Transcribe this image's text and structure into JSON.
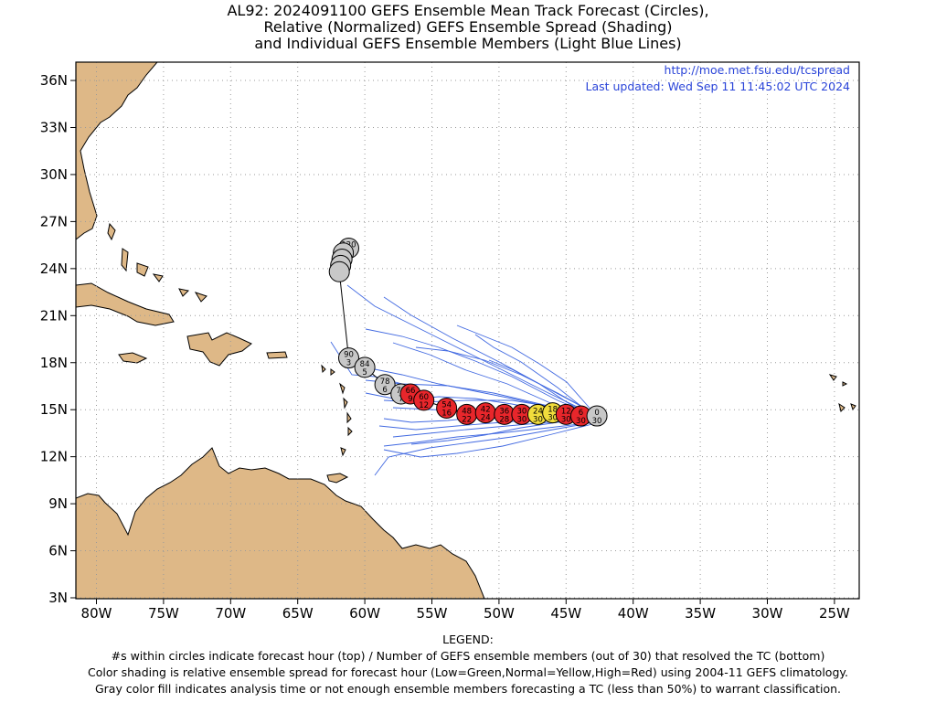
{
  "title": {
    "line1": "AL92: 2024091100 GEFS Ensemble Mean Track Forecast (Circles),",
    "line2": "Relative (Normalized) GEFS Ensemble Spread (Shading)",
    "line3": "and Individual GEFS Ensemble Members (Light Blue Lines)"
  },
  "header_right": {
    "url": "http://moe.met.fsu.edu/tcspread",
    "updated": "Last updated: Wed Sep 11 11:45:02 UTC 2024"
  },
  "axes": {
    "x_ticks": [
      "80W",
      "75W",
      "70W",
      "65W",
      "60W",
      "55W",
      "50W",
      "45W",
      "40W",
      "35W",
      "30W",
      "25W"
    ],
    "y_ticks": [
      "36N",
      "33N",
      "30N",
      "27N",
      "24N",
      "21N",
      "18N",
      "15N",
      "12N",
      "9N",
      "6N",
      "3N"
    ]
  },
  "colors": {
    "land": "#deb887",
    "member_track": "#4169e1",
    "high_spread": "#e8262b",
    "normal_spread": "#f0dc3c",
    "gray_fill": "#c8c8c8",
    "link_text": "#2a44d8"
  },
  "track": [
    {
      "lat": 14.6,
      "lon": -42.7,
      "hour": "0",
      "members": "30",
      "cat": "gray"
    },
    {
      "lat": 14.6,
      "lon": -43.9,
      "hour": "6",
      "members": "30",
      "cat": "red"
    },
    {
      "lat": 14.7,
      "lon": -45.0,
      "hour": "12",
      "members": "30",
      "cat": "red"
    },
    {
      "lat": 14.8,
      "lon": -46.0,
      "hour": "18",
      "members": "30",
      "cat": "yellow"
    },
    {
      "lat": 14.7,
      "lon": -47.1,
      "hour": "24",
      "members": "30",
      "cat": "yellow"
    },
    {
      "lat": 14.7,
      "lon": -48.3,
      "hour": "30",
      "members": "30",
      "cat": "red"
    },
    {
      "lat": 14.7,
      "lon": -49.6,
      "hour": "36",
      "members": "28",
      "cat": "red"
    },
    {
      "lat": 14.8,
      "lon": -51.0,
      "hour": "42",
      "members": "24",
      "cat": "red"
    },
    {
      "lat": 14.7,
      "lon": -52.4,
      "hour": "48",
      "members": "22",
      "cat": "red"
    },
    {
      "lat": 15.1,
      "lon": -53.9,
      "hour": "54",
      "members": "16",
      "cat": "red"
    },
    {
      "lat": 15.6,
      "lon": -55.6,
      "hour": "60",
      "members": "12",
      "cat": "red"
    },
    {
      "lat": 16.0,
      "lon": -56.6,
      "hour": "66",
      "members": "9",
      "cat": "red"
    },
    {
      "lat": 16.0,
      "lon": -57.3,
      "hour": "72",
      "members": "7",
      "cat": "gray"
    },
    {
      "lat": 16.6,
      "lon": -58.5,
      "hour": "78",
      "members": "6",
      "cat": "gray"
    },
    {
      "lat": 17.7,
      "lon": -60.0,
      "hour": "84",
      "members": "5",
      "cat": "gray"
    },
    {
      "lat": 18.3,
      "lon": -61.2,
      "hour": "90",
      "members": "3",
      "cat": "gray"
    },
    {
      "lat": 23.8,
      "lon": -61.9,
      "hour": "",
      "members": "",
      "cat": "gray"
    },
    {
      "lat": 24.2,
      "lon": -61.8,
      "hour": "",
      "members": "",
      "cat": "gray"
    },
    {
      "lat": 24.6,
      "lon": -61.7,
      "hour": "",
      "members": "",
      "cat": "gray"
    },
    {
      "lat": 25.0,
      "lon": -61.6,
      "hour": "",
      "members": "",
      "cat": "gray"
    },
    {
      "lat": 25.3,
      "lon": -61.2,
      "hour": "120",
      "members": "1",
      "cat": "gray"
    }
  ],
  "legend": {
    "heading": "LEGEND:",
    "line1": "#s within circles indicate forecast hour (top) / Number of GEFS ensemble members (out of 30) that resolved the TC (bottom)",
    "line2": "Color shading is relative ensemble spread for forecast hour (Low=Green,Normal=Yellow,High=Red) using 2004-11 GEFS climatology.",
    "line3": "Gray color fill indicates analysis time or not enough ensemble members forecasting a TC (less than 50%) to warrant classification."
  }
}
